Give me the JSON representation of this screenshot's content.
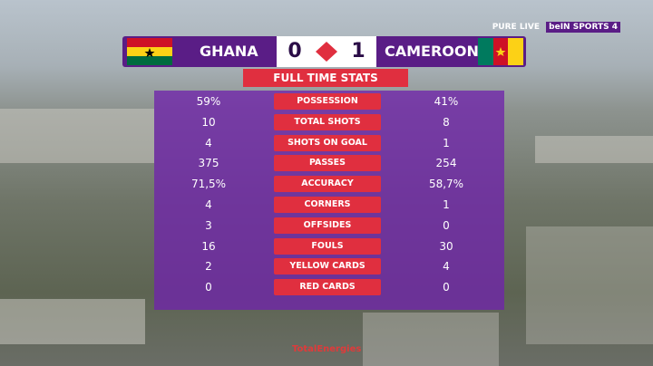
{
  "broadcaster": {
    "stream": "PURE LIVE",
    "channel": "beIN SPORTS 4"
  },
  "header": {
    "home_team": "GHANA",
    "home_score": "0",
    "away_score": "1",
    "away_team": "CAMEROON",
    "title": "FULL TIME STATS"
  },
  "stats": {
    "rows": [
      [
        "59%",
        "POSSESSION",
        "41%"
      ],
      [
        "10",
        "TOTAL SHOTS",
        "8"
      ],
      [
        "4",
        "SHOTS ON GOAL",
        "1"
      ],
      [
        "375",
        "PASSES",
        "254"
      ],
      [
        "71,5%",
        "ACCURACY",
        "58,7%"
      ],
      [
        "4",
        "CORNERS",
        "1"
      ],
      [
        "3",
        "OFFSIDES",
        "0"
      ],
      [
        "16",
        "FOULS",
        "30"
      ],
      [
        "2",
        "YELLOW CARDS",
        "4"
      ],
      [
        "0",
        "RED CARDS",
        "0"
      ]
    ]
  },
  "footer": {
    "sponsor": "TotalEnergies"
  }
}
